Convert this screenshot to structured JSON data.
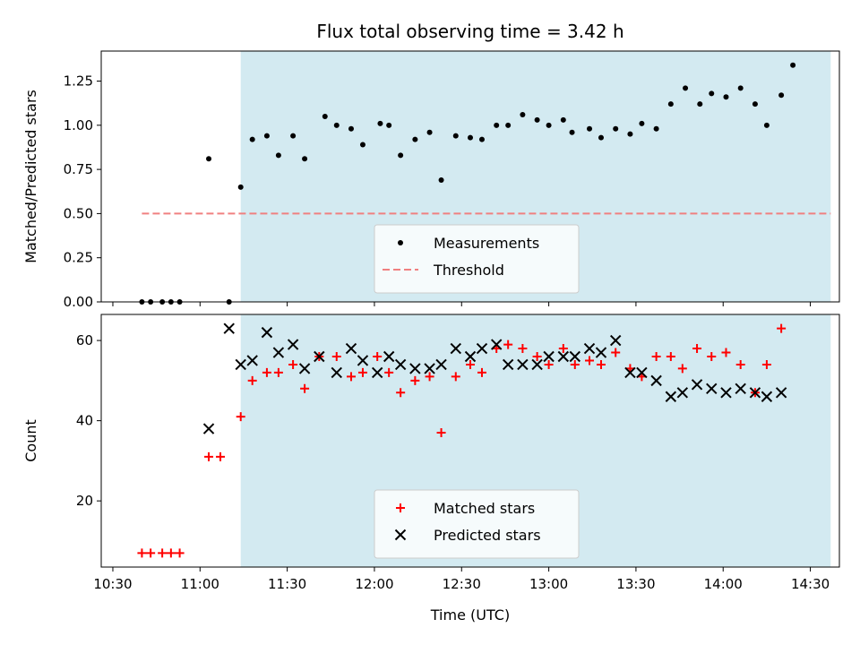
{
  "figure": {
    "title": "Flux total observing time = 3.42 h",
    "xlabel": "Time (UTC)"
  },
  "chart_data": [
    {
      "type": "scatter",
      "name": "top-panel",
      "ylabel": "Matched/Predicted stars",
      "xlim": [
        "10:26",
        "14:40"
      ],
      "ylim": [
        0,
        1.42
      ],
      "yticks": [
        "0.00",
        "0.25",
        "0.50",
        "0.75",
        "1.00",
        "1.25"
      ],
      "yticks_values": [
        0,
        0.25,
        0.5,
        0.75,
        1.0,
        1.25
      ],
      "legend_position": "lower-center",
      "shaded_region": {
        "from": "11:14",
        "to": "14:37",
        "color": "#d3eaf1"
      },
      "threshold": {
        "name": "Threshold",
        "y": 0.5,
        "from": "10:40",
        "to": "14:37",
        "color": "#f08080"
      },
      "series": [
        {
          "name": "Measurements",
          "marker": "dot",
          "color": "#000000",
          "x": [
            "10:40",
            "10:43",
            "10:47",
            "10:50",
            "10:53",
            "11:03",
            "11:10",
            "11:14",
            "11:18",
            "11:23",
            "11:27",
            "11:32",
            "11:36",
            "11:43",
            "11:47",
            "11:52",
            "11:56",
            "12:02",
            "12:05",
            "12:09",
            "12:14",
            "12:19",
            "12:23",
            "12:28",
            "12:33",
            "12:37",
            "12:42",
            "12:46",
            "12:51",
            "12:56",
            "13:00",
            "13:05",
            "13:08",
            "13:14",
            "13:18",
            "13:23",
            "13:28",
            "13:32",
            "13:37",
            "13:42",
            "13:47",
            "13:52",
            "13:56",
            "14:01",
            "14:06",
            "14:11",
            "14:15",
            "14:20",
            "14:24",
            "14:29",
            "14:33"
          ],
          "y": [
            0,
            0,
            0,
            0,
            0,
            0.81,
            0,
            0.65,
            0.92,
            0.94,
            0.83,
            0.94,
            0.81,
            1.05,
            1.0,
            0.98,
            0.89,
            1.01,
            1.0,
            0.83,
            0.92,
            0.96,
            0.69,
            0.94,
            0.93,
            0.92,
            1.0,
            1.0,
            1.06,
            1.03,
            1.0,
            1.03,
            0.96,
            0.98,
            0.93,
            0.98,
            0.95,
            1.01,
            0.98,
            1.12,
            1.21,
            1.12,
            1.18,
            1.16,
            1.21,
            1.12,
            1.0,
            1.17,
            1.34,
            null,
            null
          ]
        }
      ]
    },
    {
      "type": "scatter",
      "name": "bottom-panel",
      "ylabel": "Count",
      "xlim": [
        "10:26",
        "14:40"
      ],
      "ylim": [
        3.5,
        66.5
      ],
      "yticks": [
        "20",
        "40",
        "60"
      ],
      "yticks_values": [
        20,
        40,
        60
      ],
      "xticks": [
        "10:30",
        "11:00",
        "11:30",
        "12:00",
        "12:30",
        "13:00",
        "13:30",
        "14:00",
        "14:30"
      ],
      "legend_position": "lower-center",
      "shaded_region": {
        "from": "11:14",
        "to": "14:37",
        "color": "#d3eaf1"
      },
      "series": [
        {
          "name": "Matched stars",
          "marker": "plus",
          "color": "#ff0000",
          "x": [
            "10:40",
            "10:43",
            "10:47",
            "10:50",
            "10:53",
            "11:03",
            "11:07",
            "11:14",
            "11:18",
            "11:23",
            "11:27",
            "11:32",
            "11:36",
            "11:41",
            "11:47",
            "11:52",
            "11:56",
            "12:01",
            "12:05",
            "12:09",
            "12:14",
            "12:19",
            "12:23",
            "12:28",
            "12:33",
            "12:37",
            "12:42",
            "12:46",
            "12:51",
            "12:56",
            "13:00",
            "13:05",
            "13:09",
            "13:14",
            "13:18",
            "13:23",
            "13:28",
            "13:32",
            "13:37",
            "13:42",
            "13:46",
            "13:51",
            "13:56",
            "14:01",
            "14:06",
            "14:11",
            "14:15",
            "14:20",
            "14:24",
            "14:29",
            "14:33"
          ],
          "y": [
            7,
            7,
            7,
            7,
            7,
            31,
            31,
            41,
            50,
            52,
            52,
            54,
            48,
            56,
            56,
            51,
            52,
            56,
            52,
            47,
            50,
            51,
            37,
            51,
            54,
            52,
            58,
            59,
            58,
            56,
            54,
            58,
            54,
            55,
            54,
            57,
            53,
            51,
            56,
            56,
            53,
            58,
            56,
            57,
            54,
            47,
            54,
            63,
            null,
            null,
            null
          ]
        },
        {
          "name": "Predicted stars",
          "marker": "x",
          "color": "#000000",
          "x": [
            "11:03",
            "11:10",
            "11:14",
            "11:18",
            "11:23",
            "11:27",
            "11:32",
            "11:36",
            "11:41",
            "11:47",
            "11:52",
            "11:56",
            "12:01",
            "12:05",
            "12:09",
            "12:14",
            "12:19",
            "12:23",
            "12:28",
            "12:33",
            "12:37",
            "12:42",
            "12:46",
            "12:51",
            "12:56",
            "13:00",
            "13:05",
            "13:09",
            "13:14",
            "13:18",
            "13:23",
            "13:28",
            "13:32",
            "13:37",
            "13:42",
            "13:46",
            "13:51",
            "13:56",
            "14:01",
            "14:06",
            "14:11",
            "14:15",
            "14:20",
            "14:24",
            "14:29",
            "14:33"
          ],
          "y": [
            38,
            63,
            54,
            55,
            62,
            57,
            59,
            53,
            56,
            52,
            58,
            55,
            52,
            56,
            54,
            53,
            53,
            54,
            58,
            56,
            58,
            59,
            54,
            54,
            54,
            56,
            56,
            56,
            58,
            57,
            60,
            52,
            52,
            50,
            46,
            47,
            49,
            48,
            47,
            48,
            47,
            46,
            47,
            null,
            null,
            null
          ]
        }
      ]
    }
  ]
}
